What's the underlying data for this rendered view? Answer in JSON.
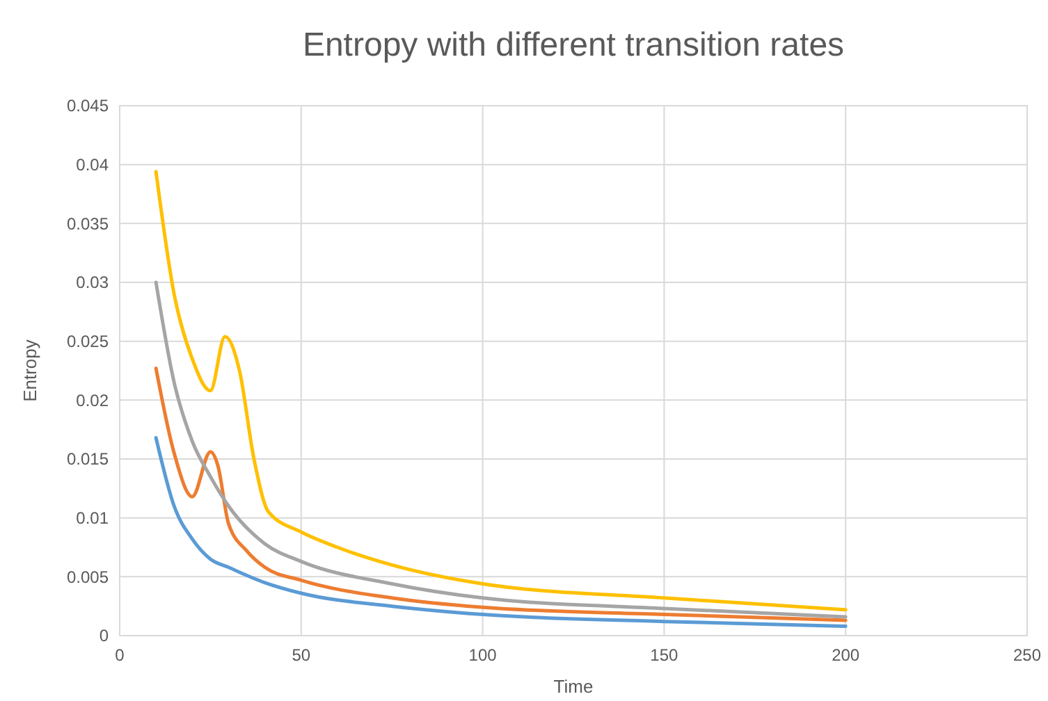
{
  "chart_data": {
    "type": "line",
    "title": "Entropy with different transition rates",
    "xlabel": "Time",
    "ylabel": "Entropy",
    "xlim": [
      0,
      250
    ],
    "xticks": [
      0,
      50,
      100,
      150,
      200,
      250
    ],
    "ylim": [
      0,
      0.045
    ],
    "yticks": [
      0,
      0.005,
      0.01,
      0.015,
      0.02,
      0.025,
      0.03,
      0.035,
      0.04,
      0.045
    ],
    "grid": true,
    "marker": "none",
    "line_style": "solid",
    "series": [
      {
        "color": "#5b9bd5",
        "x": [
          10,
          15,
          20,
          25,
          30,
          40,
          50,
          75,
          100,
          150,
          200
        ],
        "values": [
          0.0168,
          0.011,
          0.0082,
          0.0065,
          0.0058,
          0.0045,
          0.0036,
          0.0025,
          0.0018,
          0.0012,
          0.0008
        ]
      },
      {
        "color": "#ed7d31",
        "x": [
          10,
          15,
          20,
          25,
          27,
          30,
          35,
          40,
          50,
          75,
          100,
          150,
          200
        ],
        "values": [
          0.0227,
          0.0155,
          0.0118,
          0.0156,
          0.0145,
          0.0095,
          0.0072,
          0.0058,
          0.0047,
          0.0032,
          0.0024,
          0.0018,
          0.0013
        ]
      },
      {
        "color": "#a5a5a5",
        "x": [
          10,
          15,
          20,
          25,
          30,
          40,
          50,
          75,
          100,
          150,
          200
        ],
        "values": [
          0.03,
          0.0215,
          0.0165,
          0.0135,
          0.011,
          0.0078,
          0.0063,
          0.0044,
          0.0032,
          0.0023,
          0.0016
        ]
      },
      {
        "color": "#ffc000",
        "x": [
          10,
          15,
          20,
          25,
          29,
          33,
          37,
          41,
          50,
          60,
          75,
          100,
          150,
          200
        ],
        "values": [
          0.0394,
          0.029,
          0.0235,
          0.0208,
          0.0254,
          0.0225,
          0.015,
          0.0105,
          0.0088,
          0.0075,
          0.006,
          0.0044,
          0.0032,
          0.0022
        ]
      }
    ]
  }
}
